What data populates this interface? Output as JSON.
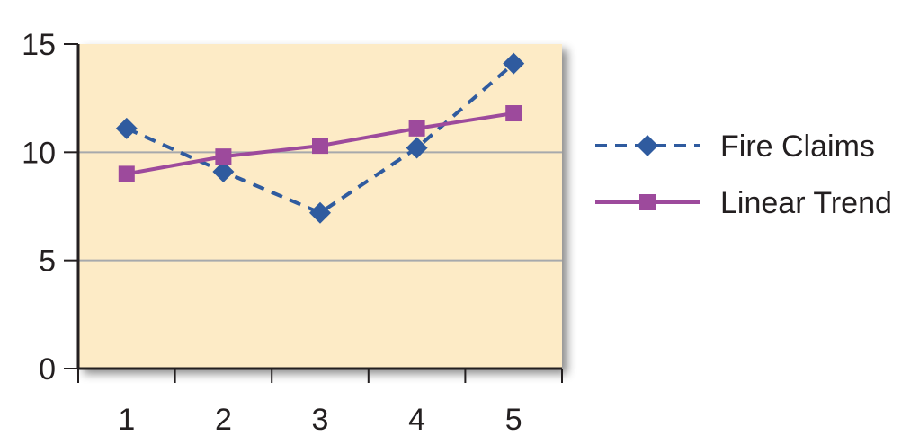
{
  "chart_data": {
    "type": "line",
    "title": "",
    "xlabel": "",
    "ylabel": "",
    "categories": [
      "1",
      "2",
      "3",
      "4",
      "5"
    ],
    "x": [
      1,
      2,
      3,
      4,
      5
    ],
    "ylim": [
      0,
      15
    ],
    "yticks": [
      "0",
      "5",
      "10",
      "15"
    ],
    "grid": "horizontal",
    "legend": "right",
    "plot_background": "#fdebc6",
    "series": [
      {
        "name": "Fire Claims",
        "values": [
          11.1,
          9.1,
          7.2,
          10.2,
          14.1
        ],
        "color": "#2f5b9f",
        "line": "dashed",
        "marker": "diamond"
      },
      {
        "name": "Linear Trend",
        "values": [
          9.0,
          9.8,
          10.3,
          11.1,
          11.8
        ],
        "color": "#9d4a9c",
        "line": "solid",
        "marker": "square"
      }
    ]
  }
}
